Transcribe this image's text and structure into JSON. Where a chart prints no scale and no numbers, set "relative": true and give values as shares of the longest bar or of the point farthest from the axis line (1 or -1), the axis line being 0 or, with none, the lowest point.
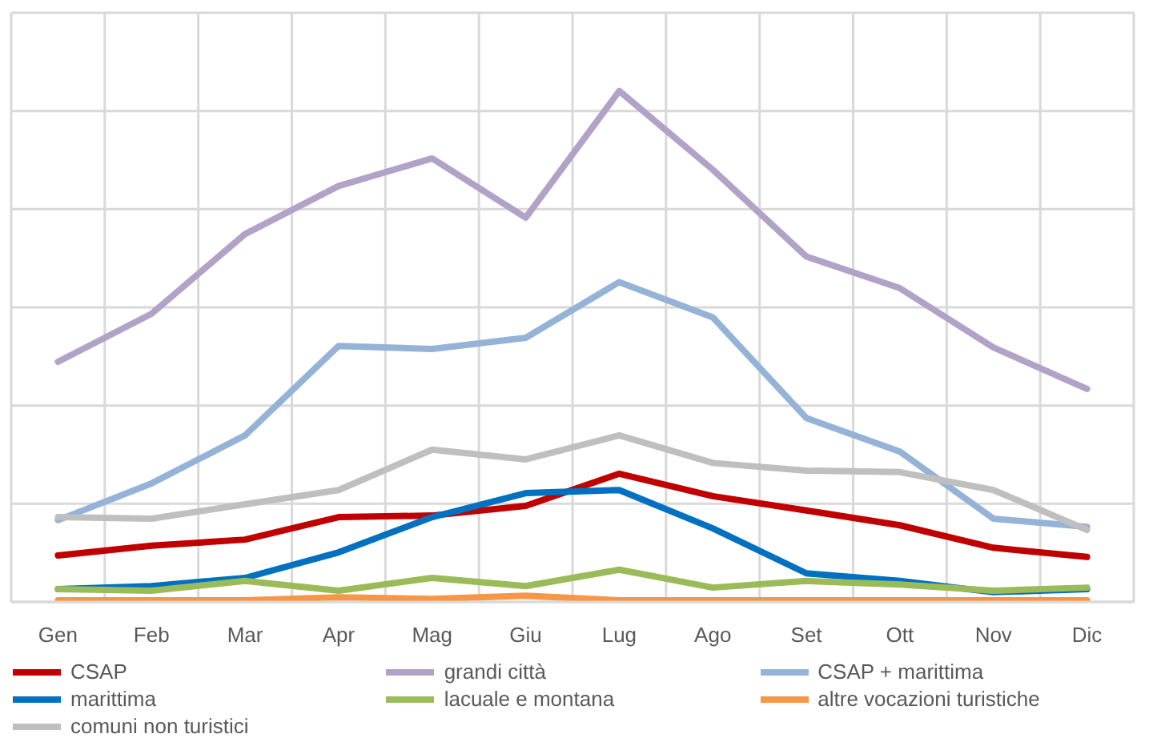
{
  "chart_data": {
    "type": "line",
    "relative": true,
    "grid": true,
    "legend": "bottom",
    "marker": "none",
    "line_style": "solid",
    "categories": [
      "Gen",
      "Feb",
      "Mar",
      "Apr",
      "Mag",
      "Giu",
      "Lug",
      "Ago",
      "Set",
      "Ott",
      "Nov",
      "Dic"
    ],
    "series": [
      {
        "name": "CSAP",
        "color": "#c00000",
        "values": [
          0.091,
          0.11,
          0.122,
          0.166,
          0.169,
          0.188,
          0.251,
          0.207,
          0.179,
          0.15,
          0.106,
          0.088
        ]
      },
      {
        "name": "grandi città",
        "color": "#b3a2c7",
        "values": [
          0.47,
          0.564,
          0.72,
          0.814,
          0.868,
          0.752,
          1.0,
          0.846,
          0.676,
          0.614,
          0.498,
          0.417
        ]
      },
      {
        "name": "CSAP + marittima",
        "color": "#95b3d7",
        "values": [
          0.16,
          0.232,
          0.326,
          0.501,
          0.495,
          0.517,
          0.626,
          0.557,
          0.36,
          0.294,
          0.163,
          0.147
        ]
      },
      {
        "name": "marittima",
        "color": "#0070c0",
        "values": [
          0.025,
          0.031,
          0.047,
          0.097,
          0.166,
          0.213,
          0.219,
          0.144,
          0.056,
          0.041,
          0.019,
          0.025
        ]
      },
      {
        "name": "lacuale e montana",
        "color": "#9bbb59",
        "values": [
          0.025,
          0.022,
          0.041,
          0.022,
          0.047,
          0.031,
          0.063,
          0.028,
          0.041,
          0.034,
          0.022,
          0.028
        ]
      },
      {
        "name": "altre vocazioni turistiche",
        "color": "#f79646",
        "values": [
          0.003,
          0.003,
          0.003,
          0.009,
          0.006,
          0.012,
          0.003,
          0.003,
          0.003,
          0.003,
          0.003,
          0.003
        ]
      },
      {
        "name": "comuni non turistici",
        "color": "#bfbfbf",
        "values": [
          0.166,
          0.163,
          0.191,
          0.219,
          0.298,
          0.279,
          0.326,
          0.272,
          0.257,
          0.254,
          0.219,
          0.141
        ]
      }
    ]
  }
}
